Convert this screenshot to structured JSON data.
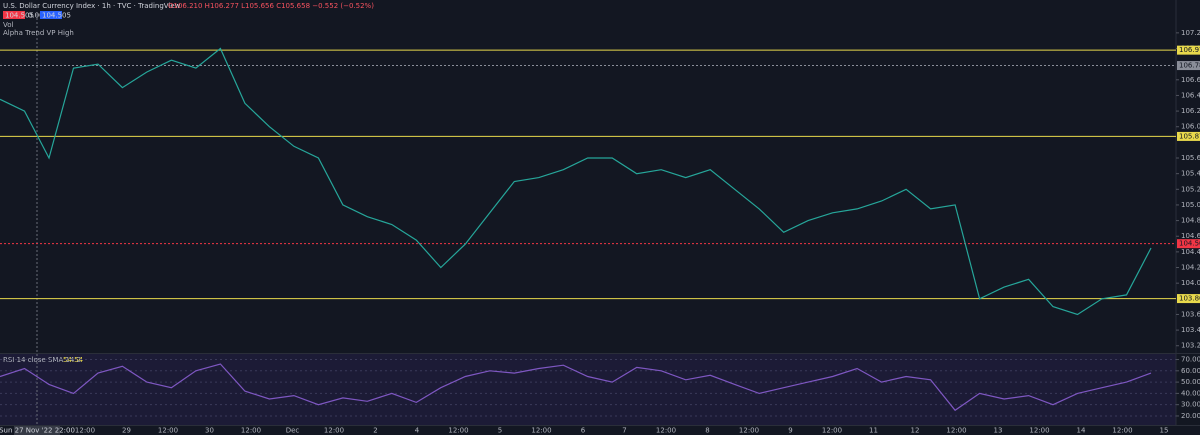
{
  "header": {
    "title": "U.S. Dollar Currency Index · 1h · TVC · TradingView",
    "ohlc": "O106.210 H106.277 L105.656 C105.658 −0.552 (−0.52%)",
    "badge_sell": "104.505",
    "badge_mid": "0.000",
    "badge_buy": "104.505"
  },
  "indicators": [
    "Vol",
    "Alpha Trend VP High"
  ],
  "crosshair_date": "Sun 27 Nov '22 22:00",
  "time_axis": [
    "12:00",
    "29",
    "12:00",
    "30",
    "12:00",
    "Dec",
    "12:00",
    "2",
    "4",
    "12:00",
    "5",
    "12:00",
    "6",
    "7",
    "12:00",
    "8",
    "12:00",
    "9",
    "12:00",
    "11",
    "12",
    "12:00",
    "13",
    "12:00",
    "14",
    "12:00",
    "15"
  ],
  "chart_data": [
    {
      "type": "line",
      "color": "#26a69a",
      "values": [
        106.35,
        106.2,
        105.6,
        106.75,
        106.8,
        106.5,
        106.7,
        106.85,
        106.75,
        107.0,
        106.3,
        106.0,
        105.75,
        105.6,
        105.0,
        104.85,
        104.75,
        104.55,
        104.2,
        104.5,
        104.9,
        105.3,
        105.35,
        105.45,
        105.6,
        105.6,
        105.4,
        105.45,
        105.35,
        105.45,
        105.2,
        104.95,
        104.65,
        104.8,
        104.9,
        104.95,
        105.05,
        105.2,
        104.95,
        105.0,
        103.8,
        103.95,
        104.05,
        103.7,
        103.6,
        103.8,
        103.85,
        104.45
      ],
      "ylim": [
        103.12,
        107.39
      ],
      "yticks": [
        {
          "value": 103.2,
          "label": "103.200"
        },
        {
          "value": 103.4,
          "label": "103.400"
        },
        {
          "value": 103.6,
          "label": "103.600"
        },
        {
          "value": 104.0,
          "label": "104.000"
        },
        {
          "value": 104.2,
          "label": "104.200"
        },
        {
          "value": 104.4,
          "label": "104.400"
        },
        {
          "value": 104.6,
          "label": "104.600"
        },
        {
          "value": 104.8,
          "label": "104.800"
        },
        {
          "value": 105.0,
          "label": "105.000"
        },
        {
          "value": 105.2,
          "label": "105.200"
        },
        {
          "value": 105.4,
          "label": "105.400"
        },
        {
          "value": 105.6,
          "label": "105.600"
        },
        {
          "value": 106.0,
          "label": "106.000"
        },
        {
          "value": 106.2,
          "label": "106.200"
        },
        {
          "value": 106.4,
          "label": "106.400"
        },
        {
          "value": 106.6,
          "label": "106.600"
        },
        {
          "value": 107.0,
          "label": "107.000"
        },
        {
          "value": 107.2,
          "label": "107.200"
        }
      ],
      "levels": [
        {
          "value": 106.979,
          "color": "#e8d94c"
        },
        {
          "value": 106.782,
          "color": "#8a8e99"
        },
        {
          "value": 105.876,
          "color": "#e8d94c"
        },
        {
          "value": 104.505,
          "color": "#f23645"
        },
        {
          "value": 103.803,
          "color": "#e8d94c"
        }
      ]
    },
    {
      "type": "line",
      "title": "RSI 14 close SMA 14 2",
      "last_label": "54.54",
      "color": "#7e57c2",
      "values": [
        55,
        62,
        48,
        40,
        58,
        64,
        50,
        45,
        60,
        66,
        42,
        35,
        38,
        30,
        36,
        33,
        40,
        32,
        45,
        55,
        60,
        58,
        62,
        65,
        55,
        50,
        63,
        60,
        52,
        56,
        48,
        40,
        45,
        50,
        55,
        62,
        50,
        55,
        52,
        25,
        40,
        35,
        38,
        30,
        40,
        45,
        50,
        58
      ],
      "ylim": [
        12,
        74
      ],
      "yticks": [
        {
          "value": 20,
          "label": "20.00"
        },
        {
          "value": 30,
          "label": "30.00"
        },
        {
          "value": 40,
          "label": "40.00"
        },
        {
          "value": 50,
          "label": "50.00"
        },
        {
          "value": 60,
          "label": "60.00"
        },
        {
          "value": 70,
          "label": "70.00"
        }
      ]
    }
  ]
}
